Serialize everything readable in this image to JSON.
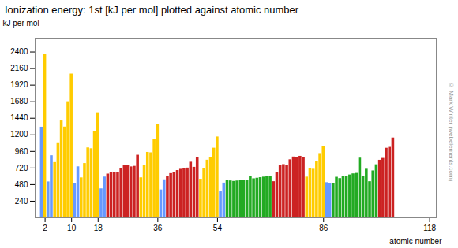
{
  "chart_data": {
    "type": "bar",
    "title": "Ionization energy: 1st [kJ per mol] plotted against atomic number",
    "ylabel": "kJ per mol",
    "xlabel": "atomic number",
    "annotations": [
      "© Mark Winter (webelements.com)"
    ],
    "x": [
      1,
      2,
      3,
      4,
      5,
      6,
      7,
      8,
      9,
      10,
      11,
      12,
      13,
      14,
      15,
      16,
      17,
      18,
      19,
      20,
      21,
      22,
      23,
      24,
      25,
      26,
      27,
      28,
      29,
      30,
      31,
      32,
      33,
      34,
      35,
      36,
      37,
      38,
      39,
      40,
      41,
      42,
      43,
      44,
      45,
      46,
      47,
      48,
      49,
      50,
      51,
      52,
      53,
      54,
      55,
      56,
      57,
      58,
      59,
      60,
      61,
      62,
      63,
      64,
      65,
      66,
      67,
      68,
      69,
      70,
      71,
      72,
      73,
      74,
      75,
      76,
      77,
      78,
      79,
      80,
      81,
      82,
      83,
      84,
      85,
      86,
      87,
      88,
      89,
      90,
      91,
      92,
      93,
      94,
      95,
      96,
      97,
      98,
      99,
      100,
      101,
      102,
      103,
      104,
      105,
      106,
      107,
      108,
      109,
      110,
      111,
      112,
      113,
      114,
      115,
      116,
      117,
      118
    ],
    "values": [
      1312,
      2372,
      520,
      899,
      800,
      1086,
      1402,
      1314,
      1681,
      2081,
      496,
      738,
      578,
      786,
      1012,
      1000,
      1251,
      1521,
      419,
      590,
      633,
      659,
      650,
      653,
      717,
      762,
      760,
      737,
      745,
      906,
      579,
      762,
      947,
      941,
      1140,
      1351,
      403,
      550,
      600,
      640,
      652,
      684,
      702,
      711,
      720,
      805,
      731,
      868,
      558,
      709,
      834,
      869,
      1008,
      1170,
      376,
      503,
      538,
      534,
      527,
      533,
      540,
      544,
      547,
      593,
      565,
      573,
      581,
      589,
      596,
      603,
      523,
      659,
      761,
      770,
      760,
      840,
      880,
      870,
      890,
      870,
      589,
      716,
      703,
      812,
      930,
      1037,
      509,
      499,
      499,
      587,
      568,
      597,
      604,
      620,
      636,
      643,
      864,
      601,
      703,
      523,
      679,
      768,
      833,
      860,
      1007,
      1020,
      1155,
      0,
      0,
      0,
      0,
      0,
      0,
      0,
      0,
      0,
      0,
      0
    ],
    "colors": [
      "#6699ff",
      "#ffcc00",
      "#6699ff",
      "#6699ff",
      "#ffcc00",
      "#ffcc00",
      "#ffcc00",
      "#ffcc00",
      "#ffcc00",
      "#ffcc00",
      "#6699ff",
      "#6699ff",
      "#ffcc00",
      "#ffcc00",
      "#ffcc00",
      "#ffcc00",
      "#ffcc00",
      "#ffcc00",
      "#6699ff",
      "#6699ff",
      "#cc2222",
      "#cc2222",
      "#cc2222",
      "#cc2222",
      "#cc2222",
      "#cc2222",
      "#cc2222",
      "#cc2222",
      "#cc2222",
      "#cc2222",
      "#ffcc00",
      "#ffcc00",
      "#ffcc00",
      "#ffcc00",
      "#ffcc00",
      "#ffcc00",
      "#6699ff",
      "#6699ff",
      "#cc2222",
      "#cc2222",
      "#cc2222",
      "#cc2222",
      "#cc2222",
      "#cc2222",
      "#cc2222",
      "#cc2222",
      "#cc2222",
      "#cc2222",
      "#ffcc00",
      "#ffcc00",
      "#ffcc00",
      "#ffcc00",
      "#ffcc00",
      "#ffcc00",
      "#6699ff",
      "#6699ff",
      "#22aa22",
      "#22aa22",
      "#22aa22",
      "#22aa22",
      "#22aa22",
      "#22aa22",
      "#22aa22",
      "#22aa22",
      "#22aa22",
      "#22aa22",
      "#22aa22",
      "#22aa22",
      "#22aa22",
      "#22aa22",
      "#cc2222",
      "#cc2222",
      "#cc2222",
      "#cc2222",
      "#cc2222",
      "#cc2222",
      "#cc2222",
      "#cc2222",
      "#cc2222",
      "#cc2222",
      "#ffcc00",
      "#ffcc00",
      "#ffcc00",
      "#ffcc00",
      "#ffcc00",
      "#ffcc00",
      "#6699ff",
      "#6699ff",
      "#22aa22",
      "#22aa22",
      "#22aa22",
      "#22aa22",
      "#22aa22",
      "#22aa22",
      "#22aa22",
      "#22aa22",
      "#22aa22",
      "#22aa22",
      "#22aa22",
      "#22aa22",
      "#22aa22",
      "#22aa22",
      "#cc2222",
      "#cc2222",
      "#cc2222",
      "#cc2222",
      "#cc2222",
      "#cc2222",
      "#cc2222",
      "#cc2222",
      "#cc2222",
      "#cc2222",
      "#ffcc00",
      "#ffcc00",
      "#ffcc00",
      "#ffcc00",
      "#ffcc00",
      "#ffcc00"
    ],
    "xlim": [
      -1,
      120
    ],
    "ylim": [
      0,
      2600
    ],
    "xticks": [
      2,
      10,
      18,
      36,
      54,
      86,
      118
    ],
    "yticks": [
      240,
      480,
      720,
      960,
      1200,
      1440,
      1680,
      1920,
      2160,
      2400
    ],
    "grid": false
  }
}
